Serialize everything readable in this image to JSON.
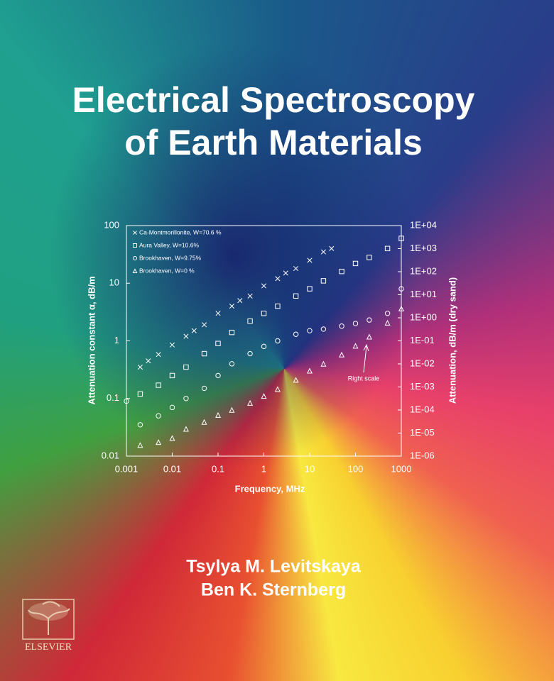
{
  "cover": {
    "title_lines": [
      "Electrical Spectroscopy",
      "of Earth Materials"
    ],
    "authors": [
      "Tsylya M. Levitskaya",
      "Ben K. Sternberg"
    ],
    "publisher": "ELSEVIER"
  },
  "chart_data": {
    "type": "scatter",
    "x_label": "Frequency, MHz",
    "y_label": "Attenuation constant α, dB/m",
    "y2_label": "Attenuation, dB/m (dry sand)",
    "annotation": "Right scale",
    "xscale": "log",
    "yscale": "log",
    "y2scale": "log",
    "xlim": [
      0.001,
      1000
    ],
    "xticks": [
      0.001,
      0.01,
      0.1,
      1,
      10,
      100,
      1000
    ],
    "ylim": [
      0.01,
      100
    ],
    "yticks": [
      0.01,
      0.1,
      1,
      10,
      100
    ],
    "y2lim": [
      1e-06,
      10000
    ],
    "y2ticks": [
      {
        "value": 10000,
        "label": "1E+04"
      },
      {
        "value": 1000,
        "label": "1E+03"
      },
      {
        "value": 100,
        "label": "1E+02"
      },
      {
        "value": 10,
        "label": "1E+01"
      },
      {
        "value": 1,
        "label": "1E+00"
      },
      {
        "value": 0.1,
        "label": "1E-01"
      },
      {
        "value": 0.01,
        "label": "1E-02"
      },
      {
        "value": 0.001,
        "label": "1E-03"
      },
      {
        "value": 0.0001,
        "label": "1E-04"
      },
      {
        "value": 1e-05,
        "label": "1E-05"
      },
      {
        "value": 1e-06,
        "label": "1E-06"
      }
    ],
    "legend": "top-left",
    "series": [
      {
        "name": "Ca-Montmorillonite, W=70.6 %",
        "marker": "x",
        "color": "#ffffff",
        "x": [
          0.002,
          0.003,
          0.005,
          0.01,
          0.02,
          0.03,
          0.05,
          0.1,
          0.2,
          0.3,
          0.5,
          1,
          2,
          3,
          5,
          10,
          20,
          30
        ],
        "values": [
          0.35,
          0.45,
          0.58,
          0.85,
          1.2,
          1.5,
          1.9,
          3.0,
          4.0,
          5.0,
          6.0,
          9.0,
          12,
          15,
          18,
          25,
          35,
          40
        ]
      },
      {
        "name": "Aura Valley, W=10.6%",
        "marker": "square",
        "color": "#ffffff",
        "x": [
          0.002,
          0.005,
          0.01,
          0.02,
          0.05,
          0.1,
          0.2,
          0.5,
          1,
          2,
          5,
          10,
          20,
          50,
          100,
          200,
          500,
          1000
        ],
        "values": [
          0.12,
          0.17,
          0.25,
          0.35,
          0.6,
          0.9,
          1.4,
          2.2,
          3,
          4,
          6,
          8,
          11,
          16,
          22,
          28,
          40,
          60
        ]
      },
      {
        "name": "Brookhaven, W=9.75%",
        "marker": "circle",
        "color": "#ffffff",
        "x": [
          0.001,
          0.002,
          0.005,
          0.01,
          0.02,
          0.05,
          0.1,
          0.2,
          0.5,
          1,
          2,
          5,
          10,
          20,
          50,
          100,
          200,
          500,
          1000
        ],
        "values": [
          0.09,
          0.035,
          0.05,
          0.07,
          0.1,
          0.15,
          0.25,
          0.4,
          0.6,
          0.8,
          1.0,
          1.3,
          1.5,
          1.6,
          1.8,
          2,
          2.3,
          3,
          8
        ]
      },
      {
        "name": "Brookhaven, W=0 %",
        "marker": "triangle",
        "color": "#ffffff",
        "axis": "y2",
        "x": [
          0.002,
          0.005,
          0.01,
          0.02,
          0.05,
          0.1,
          0.2,
          0.5,
          1,
          2,
          5,
          10,
          20,
          50,
          100,
          200,
          500,
          1000
        ],
        "values": [
          3e-06,
          4e-06,
          6e-06,
          1.5e-05,
          3e-05,
          6e-05,
          0.0001,
          0.0002,
          0.0004,
          0.0008,
          0.002,
          0.005,
          0.01,
          0.025,
          0.06,
          0.15,
          0.6,
          2.5
        ]
      }
    ]
  }
}
